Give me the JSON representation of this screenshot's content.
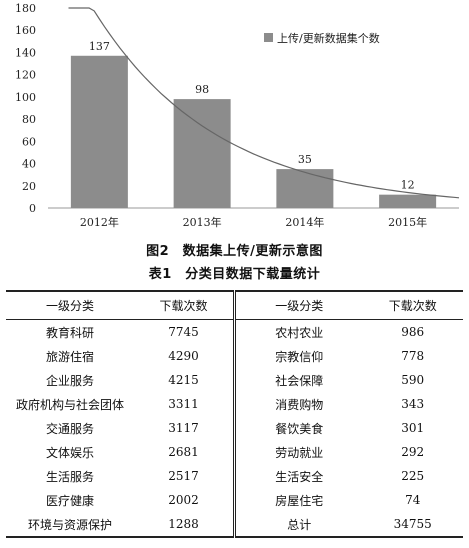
{
  "chart_data": {
    "type": "bar",
    "categories": [
      "2012年",
      "2013年",
      "2014年",
      "2015年"
    ],
    "values": [
      137,
      98,
      35,
      12
    ],
    "data_labels": [
      "137",
      "98",
      "35",
      "12"
    ],
    "series": [
      {
        "name": "上传/更新数据集个数",
        "values": [
          137,
          98,
          35,
          12
        ]
      }
    ],
    "trendline": {
      "type": "exponential",
      "color": "#666666"
    },
    "ylim": [
      0,
      180
    ],
    "yticks": [
      "0",
      "20",
      "40",
      "60",
      "80",
      "100",
      "120",
      "140",
      "160",
      "180"
    ],
    "grid": false,
    "legend_position": "top-right",
    "bar_color": "#8c8c8c"
  },
  "figure_caption": "图2　数据集上传/更新示意图",
  "table_caption": "表1　分类目数据下载量统计",
  "table": {
    "headers": [
      "一级分类",
      "下载次数",
      "一级分类",
      "下载次数"
    ],
    "rows": [
      [
        "教育科研",
        "7745",
        "农村农业",
        "986"
      ],
      [
        "旅游住宿",
        "4290",
        "宗教信仰",
        "778"
      ],
      [
        "企业服务",
        "4215",
        "社会保障",
        "590"
      ],
      [
        "政府机构与社会团体",
        "3311",
        "消费购物",
        "343"
      ],
      [
        "交通服务",
        "3117",
        "餐饮美食",
        "301"
      ],
      [
        "文体娱乐",
        "2681",
        "劳动就业",
        "292"
      ],
      [
        "生活服务",
        "2517",
        "生活安全",
        "225"
      ],
      [
        "医疗健康",
        "2002",
        "房屋住宅",
        "74"
      ],
      [
        "环境与资源保护",
        "1288",
        "总计",
        "34755"
      ]
    ]
  }
}
